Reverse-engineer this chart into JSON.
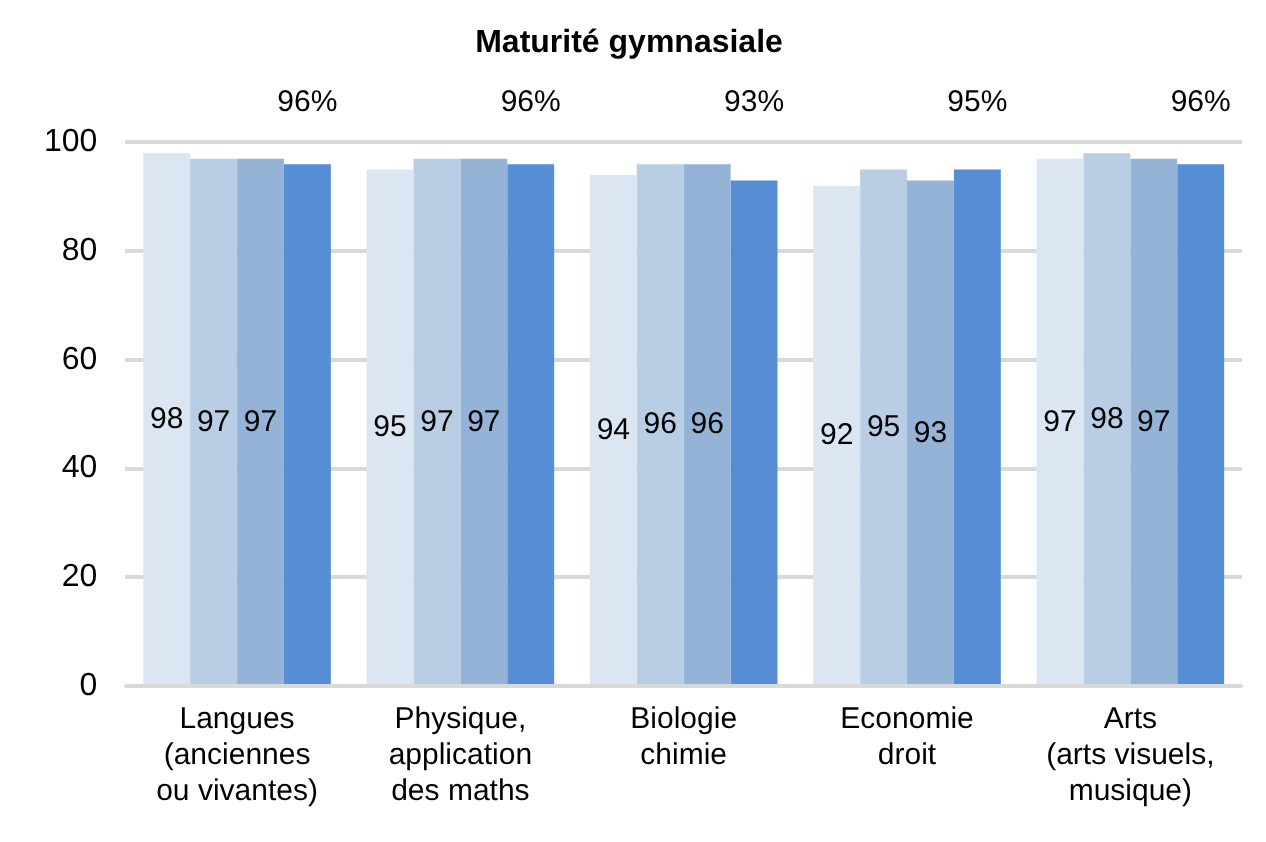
{
  "chart_data": {
    "type": "bar",
    "title": "Maturité gymnasiale",
    "categories": [
      "Langues\n(anciennes\nou vivantes)",
      "Physique,\napplication\ndes maths",
      "Biologie\nchimie",
      "Economie\ndroit",
      "Arts\n(arts visuels,\nmusique)"
    ],
    "series": [
      {
        "color": "#dce6f2",
        "values": [
          98,
          95,
          94,
          92,
          97
        ],
        "value_labels": [
          "98",
          "95",
          "94",
          "92",
          "97"
        ]
      },
      {
        "color": "#b9cde5",
        "values": [
          97,
          97,
          96,
          95,
          98
        ],
        "value_labels": [
          "97",
          "97",
          "96",
          "95",
          "98"
        ]
      },
      {
        "color": "#95b3d7",
        "values": [
          97,
          97,
          96,
          93,
          97
        ],
        "value_labels": [
          "97",
          "97",
          "96",
          "93",
          "97"
        ]
      },
      {
        "color": "#558ed5",
        "values": [
          96,
          96,
          93,
          95,
          96
        ],
        "value_labels": [
          "96%",
          "96%",
          "93%",
          "95%",
          "96%"
        ]
      }
    ],
    "ylim": [
      0,
      100
    ],
    "yticks": [
      0,
      20,
      40,
      60,
      80,
      100
    ],
    "grid": "y",
    "legend": false
  }
}
